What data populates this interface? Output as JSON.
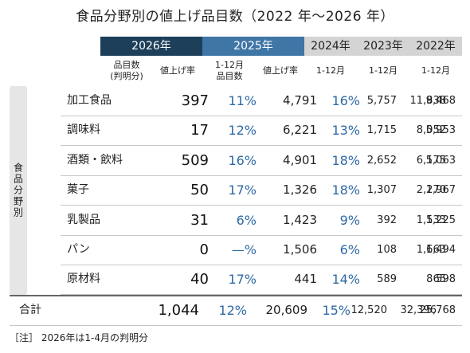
{
  "title": "食品分野別の値上げ品目数（2022 年～2026 年）",
  "headers": {
    "y2026": "2026年",
    "y2025": "2025年",
    "y2024": "2024年",
    "y2023": "2023年",
    "y2022": "2022年"
  },
  "subheaders": {
    "items_2026": "品目数\n(判明分)",
    "rate_2026": "値上げ率",
    "items_2025": "1-12月\n品目数",
    "rate_2025": "値上げ率",
    "m2024": "1-12月",
    "m2023": "1-12月",
    "m2022": "1-12月"
  },
  "sidebar_label": "食品分野別",
  "rows": [
    {
      "category": "加工食品",
      "items2026": "397",
      "rate2026": "11%",
      "items2025": "4,791",
      "rate2025": "16%",
      "y2024": "5,757",
      "y2023": "11,838",
      "y2022": "9,468"
    },
    {
      "category": "調味料",
      "items2026": "17",
      "rate2026": "12%",
      "items2025": "6,221",
      "rate2025": "13%",
      "y2024": "1,715",
      "y2023": "8,052",
      "y2022": "5,953"
    },
    {
      "category": "酒類・飲料",
      "items2026": "509",
      "rate2026": "16%",
      "items2025": "4,901",
      "rate2025": "18%",
      "y2024": "2,652",
      "y2023": "6,175",
      "y2022": "5,063"
    },
    {
      "category": "菓子",
      "items2026": "50",
      "rate2026": "17%",
      "items2025": "1,326",
      "rate2025": "18%",
      "y2024": "1,307",
      "y2023": "2,270",
      "y2022": "1,967"
    },
    {
      "category": "乳製品",
      "items2026": "31",
      "rate2026": "6%",
      "items2025": "1,423",
      "rate2025": "9%",
      "y2024": "392",
      "y2023": "1,533",
      "y2022": "1,225"
    },
    {
      "category": "パン",
      "items2026": "0",
      "rate2026": "—%",
      "items2025": "1,506",
      "rate2025": "6%",
      "y2024": "108",
      "y2023": "1,663",
      "y2022": "1,494"
    },
    {
      "category": "原材料",
      "items2026": "40",
      "rate2026": "17%",
      "items2025": "441",
      "rate2025": "14%",
      "y2024": "589",
      "y2023": "865",
      "y2022": "598"
    }
  ],
  "total": {
    "category": "合計",
    "items2026": "1,044",
    "rate2026": "12%",
    "items2025": "20,609",
    "rate2025": "15%",
    "y2024": "12,520",
    "y2023": "32,396",
    "y2022": "25,768"
  },
  "note": "［注］ 2026年は1-4月の判明分"
}
